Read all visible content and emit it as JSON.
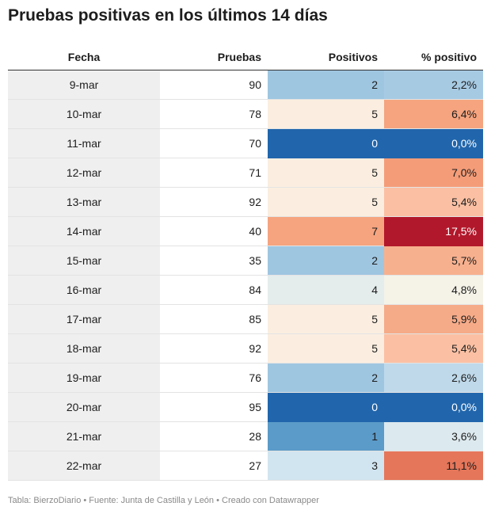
{
  "title": "Pruebas positivas en los últimos 14 días",
  "footer": "Tabla: BierzoDiario • Fuente: Junta de Castilla y León • Creado con Datawrapper",
  "colors": {
    "blue_dark": "#2166ac",
    "blue_mid": "#4393c3",
    "blue_light": "#92c5de",
    "blue_pale": "#d1e5f0",
    "neutral_blue": "#e4ecec",
    "neutral_warm": "#f5f3e8",
    "peach_pale": "#fbeee0",
    "salmon_light": "#fbc0a3",
    "salmon": "#f5a47f",
    "orange_red": "#e5765a",
    "crimson": "#b2182b"
  },
  "chart_data": {
    "type": "table",
    "columns": [
      "Fecha",
      "Pruebas",
      "Positivos",
      "% positivo"
    ],
    "rows": [
      {
        "fecha": "9-mar",
        "pruebas": "90",
        "positivos": "2",
        "pct": "2,2%",
        "pos_color": "#9fc6e1",
        "pct_color": "#a7cae3"
      },
      {
        "fecha": "10-mar",
        "pruebas": "78",
        "positivos": "5",
        "pct": "6,4%",
        "pos_color": "#fbeee0",
        "pct_color": "#f5a47f"
      },
      {
        "fecha": "11-mar",
        "pruebas": "70",
        "positivos": "0",
        "pct": "0,0%",
        "pos_color": "#2166ac",
        "pct_color": "#2166ac"
      },
      {
        "fecha": "12-mar",
        "pruebas": "71",
        "positivos": "5",
        "pct": "7,0%",
        "pos_color": "#fbeee0",
        "pct_color": "#f49c78"
      },
      {
        "fecha": "13-mar",
        "pruebas": "92",
        "positivos": "5",
        "pct": "5,4%",
        "pos_color": "#fbeee0",
        "pct_color": "#fbc0a3"
      },
      {
        "fecha": "14-mar",
        "pruebas": "40",
        "positivos": "7",
        "pct": "17,5%",
        "pos_color": "#f5a47f",
        "pct_color": "#b2182b"
      },
      {
        "fecha": "15-mar",
        "pruebas": "35",
        "positivos": "2",
        "pct": "5,7%",
        "pos_color": "#9fc6e1",
        "pct_color": "#f7b08e"
      },
      {
        "fecha": "16-mar",
        "pruebas": "84",
        "positivos": "4",
        "pct": "4,8%",
        "pos_color": "#e4ecec",
        "pct_color": "#f5f3e8"
      },
      {
        "fecha": "17-mar",
        "pruebas": "85",
        "positivos": "5",
        "pct": "5,9%",
        "pos_color": "#fbeee0",
        "pct_color": "#f6ab88"
      },
      {
        "fecha": "18-mar",
        "pruebas": "92",
        "positivos": "5",
        "pct": "5,4%",
        "pos_color": "#fbeee0",
        "pct_color": "#fbc0a3"
      },
      {
        "fecha": "19-mar",
        "pruebas": "76",
        "positivos": "2",
        "pct": "2,6%",
        "pos_color": "#9fc6e1",
        "pct_color": "#bfd9ea"
      },
      {
        "fecha": "20-mar",
        "pruebas": "95",
        "positivos": "0",
        "pct": "0,0%",
        "pos_color": "#2166ac",
        "pct_color": "#2166ac"
      },
      {
        "fecha": "21-mar",
        "pruebas": "28",
        "positivos": "1",
        "pct": "3,6%",
        "pos_color": "#5b9bc9",
        "pct_color": "#dce9ee"
      },
      {
        "fecha": "22-mar",
        "pruebas": "27",
        "positivos": "3",
        "pct": "11,1%",
        "pos_color": "#d1e5f0",
        "pct_color": "#e5765a"
      }
    ]
  }
}
